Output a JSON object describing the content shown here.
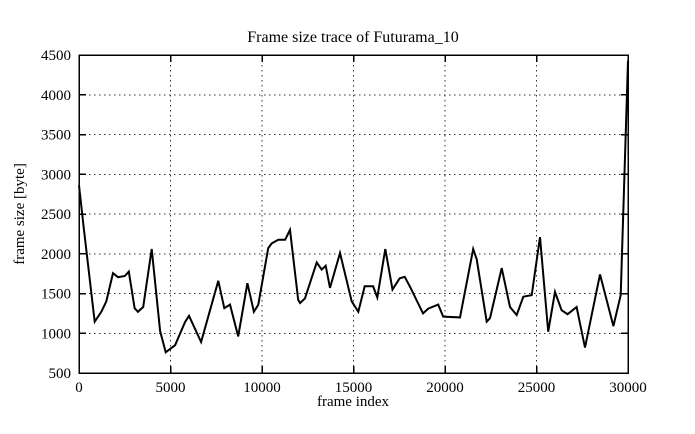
{
  "page": {
    "background": "#ffffff",
    "foreground": "#000000"
  },
  "chart_data": {
    "type": "line",
    "title": "Frame size trace of Futurama_10",
    "xlabel": "frame index",
    "ylabel": "frame size [byte]",
    "series_name": "frame size trace",
    "line_color": "#000000",
    "grid": true,
    "grid_style": "dotted",
    "legend": "none",
    "xlim": [
      0,
      30000
    ],
    "ylim": [
      500,
      4500
    ],
    "xticks": [
      0,
      5000,
      10000,
      15000,
      20000,
      25000,
      30000
    ],
    "yticks": [
      500,
      1000,
      1500,
      2000,
      2500,
      3000,
      3500,
      4000,
      4500
    ],
    "x": [
      0,
      250,
      860,
      1220,
      1490,
      1860,
      2130,
      2500,
      2720,
      3040,
      3220,
      3510,
      3970,
      4430,
      4740,
      5250,
      5790,
      6010,
      6670,
      7610,
      7940,
      8250,
      8700,
      9200,
      9560,
      9800,
      10340,
      10530,
      10890,
      11260,
      11530,
      11980,
      12080,
      12350,
      12990,
      13260,
      13480,
      13715,
      14260,
      14900,
      15260,
      15610,
      16070,
      16300,
      16740,
      17130,
      17520,
      17800,
      18100,
      18800,
      19090,
      19630,
      19900,
      20820,
      21540,
      21730,
      22280,
      22460,
      23100,
      23550,
      23920,
      24280,
      24740,
      25190,
      25640,
      26010,
      26370,
      26700,
      27190,
      27650,
      28470,
      29200,
      29600,
      30000
    ],
    "y": [
      2860,
      2340,
      1145,
      1270,
      1400,
      1755,
      1705,
      1720,
      1775,
      1315,
      1270,
      1330,
      2060,
      1030,
      760,
      850,
      1140,
      1220,
      890,
      1660,
      1315,
      1360,
      960,
      1630,
      1270,
      1360,
      2070,
      2130,
      2175,
      2175,
      2300,
      1420,
      1380,
      1440,
      1890,
      1800,
      1850,
      1570,
      2010,
      1400,
      1270,
      1590,
      1590,
      1450,
      2060,
      1550,
      1690,
      1710,
      1580,
      1250,
      1310,
      1360,
      1210,
      1200,
      2060,
      1930,
      1145,
      1190,
      1820,
      1330,
      1230,
      1460,
      1480,
      2210,
      1020,
      1520,
      1290,
      1240,
      1330,
      820,
      1740,
      1090,
      1480,
      4430
    ]
  }
}
